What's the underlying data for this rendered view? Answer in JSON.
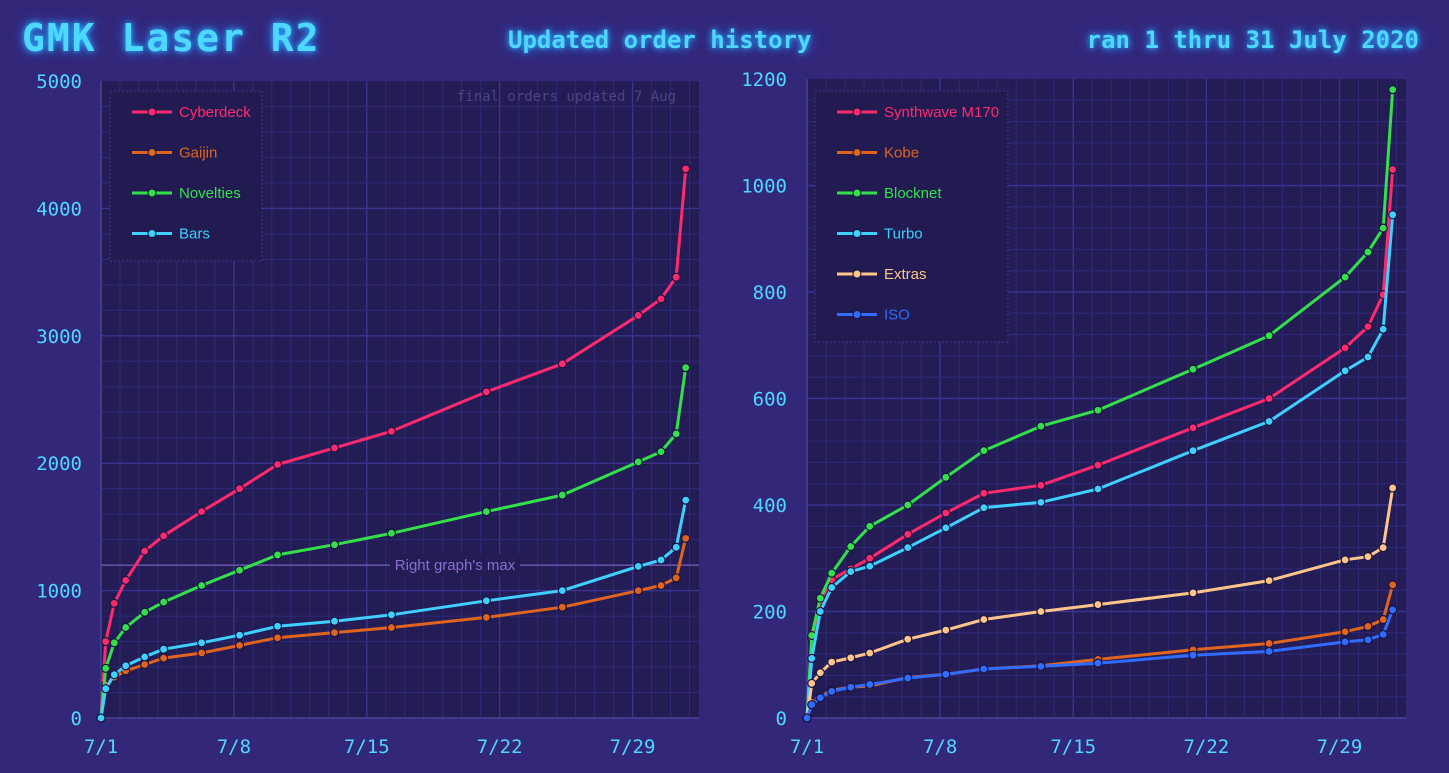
{
  "header": {
    "title": "GMK Laser R2",
    "subtitle": "Updated order history",
    "date_range": "ran 1 thru 31 July 2020"
  },
  "colors": {
    "background": "#33277a",
    "plot_bg": "#231c55",
    "grid": "#2f2a78",
    "accent": "#4fd8ff"
  },
  "chart_data": [
    {
      "type": "line",
      "title": "",
      "xlabel": "",
      "ylabel": "",
      "xlim": [
        0,
        31.5
      ],
      "ylim": [
        0,
        5000
      ],
      "x_ticks": [
        0,
        7,
        14,
        21,
        28
      ],
      "x_tick_labels": [
        "7/1",
        "7/8",
        "7/15",
        "7/22",
        "7/29"
      ],
      "y_ticks": [
        0,
        1000,
        2000,
        3000,
        4000,
        5000
      ],
      "y_tick_labels": [
        "0",
        "1000",
        "2000",
        "3000",
        "4000",
        "5000"
      ],
      "legend_position": "top-left",
      "annotation": "final orders updated 7 Aug",
      "reference_line": {
        "label": "Right graph's max",
        "y": 1200
      },
      "series": [
        {
          "name": "Cyberdeck",
          "color": "#ff2a6d",
          "x": [
            0,
            0.25,
            0.7,
            1.3,
            2.3,
            3.3,
            5.3,
            7.3,
            9.3,
            12.3,
            15.3,
            20.3,
            24.3,
            28.3,
            29.5,
            30.3,
            30.8
          ],
          "y": [
            0,
            600,
            900,
            1080,
            1310,
            1430,
            1620,
            1800,
            1990,
            2120,
            2250,
            2560,
            2780,
            3160,
            3290,
            3460,
            4310
          ]
        },
        {
          "name": "Gaijin",
          "color": "#e0641e",
          "x": [
            0,
            0.25,
            0.7,
            1.3,
            2.3,
            3.3,
            5.3,
            7.3,
            9.3,
            12.3,
            15.3,
            20.3,
            24.3,
            28.3,
            29.5,
            30.3,
            30.8
          ],
          "y": [
            0,
            260,
            320,
            370,
            420,
            470,
            510,
            570,
            630,
            670,
            710,
            790,
            870,
            1000,
            1040,
            1100,
            1410
          ]
        },
        {
          "name": "Novelties",
          "color": "#33e04a",
          "x": [
            0,
            0.25,
            0.7,
            1.3,
            2.3,
            3.3,
            5.3,
            7.3,
            9.3,
            12.3,
            15.3,
            20.3,
            24.3,
            28.3,
            29.5,
            30.3,
            30.8
          ],
          "y": [
            0,
            390,
            590,
            710,
            830,
            910,
            1040,
            1160,
            1280,
            1360,
            1450,
            1620,
            1750,
            2010,
            2090,
            2230,
            2750
          ]
        },
        {
          "name": "Bars",
          "color": "#3fd0ff",
          "x": [
            0,
            0.25,
            0.7,
            1.3,
            2.3,
            3.3,
            5.3,
            7.3,
            9.3,
            12.3,
            15.3,
            20.3,
            24.3,
            28.3,
            29.5,
            30.3,
            30.8
          ],
          "y": [
            0,
            230,
            340,
            410,
            480,
            540,
            590,
            650,
            720,
            760,
            810,
            920,
            1000,
            1190,
            1240,
            1340,
            1710
          ]
        }
      ]
    },
    {
      "type": "line",
      "title": "",
      "xlabel": "",
      "ylabel": "",
      "xlim": [
        0,
        31.5
      ],
      "ylim": [
        0,
        1200
      ],
      "x_ticks": [
        0,
        7,
        14,
        21,
        28
      ],
      "x_tick_labels": [
        "7/1",
        "7/8",
        "7/15",
        "7/22",
        "7/29"
      ],
      "y_ticks": [
        0,
        200,
        400,
        600,
        800,
        1000,
        1200
      ],
      "y_tick_labels": [
        "0",
        "200",
        "400",
        "600",
        "800",
        "1000",
        "1200"
      ],
      "legend_position": "top-left",
      "series": [
        {
          "name": "Synthwave M170",
          "color": "#ff2a6d",
          "x": [
            0,
            0.25,
            0.7,
            1.3,
            2.3,
            3.3,
            5.3,
            7.3,
            9.3,
            12.3,
            15.3,
            20.3,
            24.3,
            28.3,
            29.5,
            30.3,
            30.8
          ],
          "y": [
            0,
            150,
            220,
            260,
            280,
            300,
            345,
            385,
            422,
            437,
            475,
            545,
            600,
            695,
            735,
            795,
            1030
          ]
        },
        {
          "name": "Kobe",
          "color": "#e0641e",
          "x": [
            0,
            0.25,
            0.7,
            1.3,
            2.3,
            3.3,
            5.3,
            7.3,
            9.3,
            12.3,
            15.3,
            20.3,
            24.3,
            28.3,
            29.5,
            30.3,
            30.8
          ],
          "y": [
            0,
            30,
            40,
            52,
            58,
            60,
            76,
            82,
            92,
            98,
            110,
            128,
            140,
            162,
            172,
            185,
            250
          ]
        },
        {
          "name": "Blocknet",
          "color": "#33e04a",
          "x": [
            0,
            0.25,
            0.7,
            1.3,
            2.3,
            3.3,
            5.3,
            7.3,
            9.3,
            12.3,
            15.3,
            20.3,
            24.3,
            28.3,
            29.5,
            30.3,
            30.8
          ],
          "y": [
            0,
            155,
            225,
            272,
            322,
            360,
            400,
            452,
            502,
            548,
            578,
            655,
            718,
            828,
            875,
            920,
            1180
          ]
        },
        {
          "name": "Turbo",
          "color": "#3fd0ff",
          "x": [
            0,
            0.25,
            0.7,
            1.3,
            2.3,
            3.3,
            5.3,
            7.3,
            9.3,
            12.3,
            15.3,
            20.3,
            24.3,
            28.3,
            29.5,
            30.3,
            30.8
          ],
          "y": [
            0,
            112,
            200,
            245,
            275,
            285,
            320,
            357,
            395,
            405,
            430,
            502,
            557,
            652,
            678,
            730,
            945
          ]
        },
        {
          "name": "Extras",
          "color": "#ffc58a",
          "x": [
            0,
            0.25,
            0.7,
            1.3,
            2.3,
            3.3,
            5.3,
            7.3,
            9.3,
            12.3,
            15.3,
            20.3,
            24.3,
            28.3,
            29.5,
            30.3,
            30.8
          ],
          "y": [
            0,
            65,
            85,
            105,
            113,
            122,
            148,
            165,
            185,
            200,
            213,
            235,
            258,
            297,
            303,
            320,
            432
          ]
        },
        {
          "name": "ISO",
          "color": "#2f6cff",
          "x": [
            0,
            0.25,
            0.7,
            1.3,
            2.3,
            3.3,
            5.3,
            7.3,
            9.3,
            12.3,
            15.3,
            20.3,
            24.3,
            28.3,
            29.5,
            30.3,
            30.8
          ],
          "y": [
            0,
            25,
            38,
            50,
            58,
            63,
            75,
            82,
            92,
            97,
            103,
            118,
            125,
            143,
            147,
            157,
            203
          ]
        }
      ]
    }
  ]
}
